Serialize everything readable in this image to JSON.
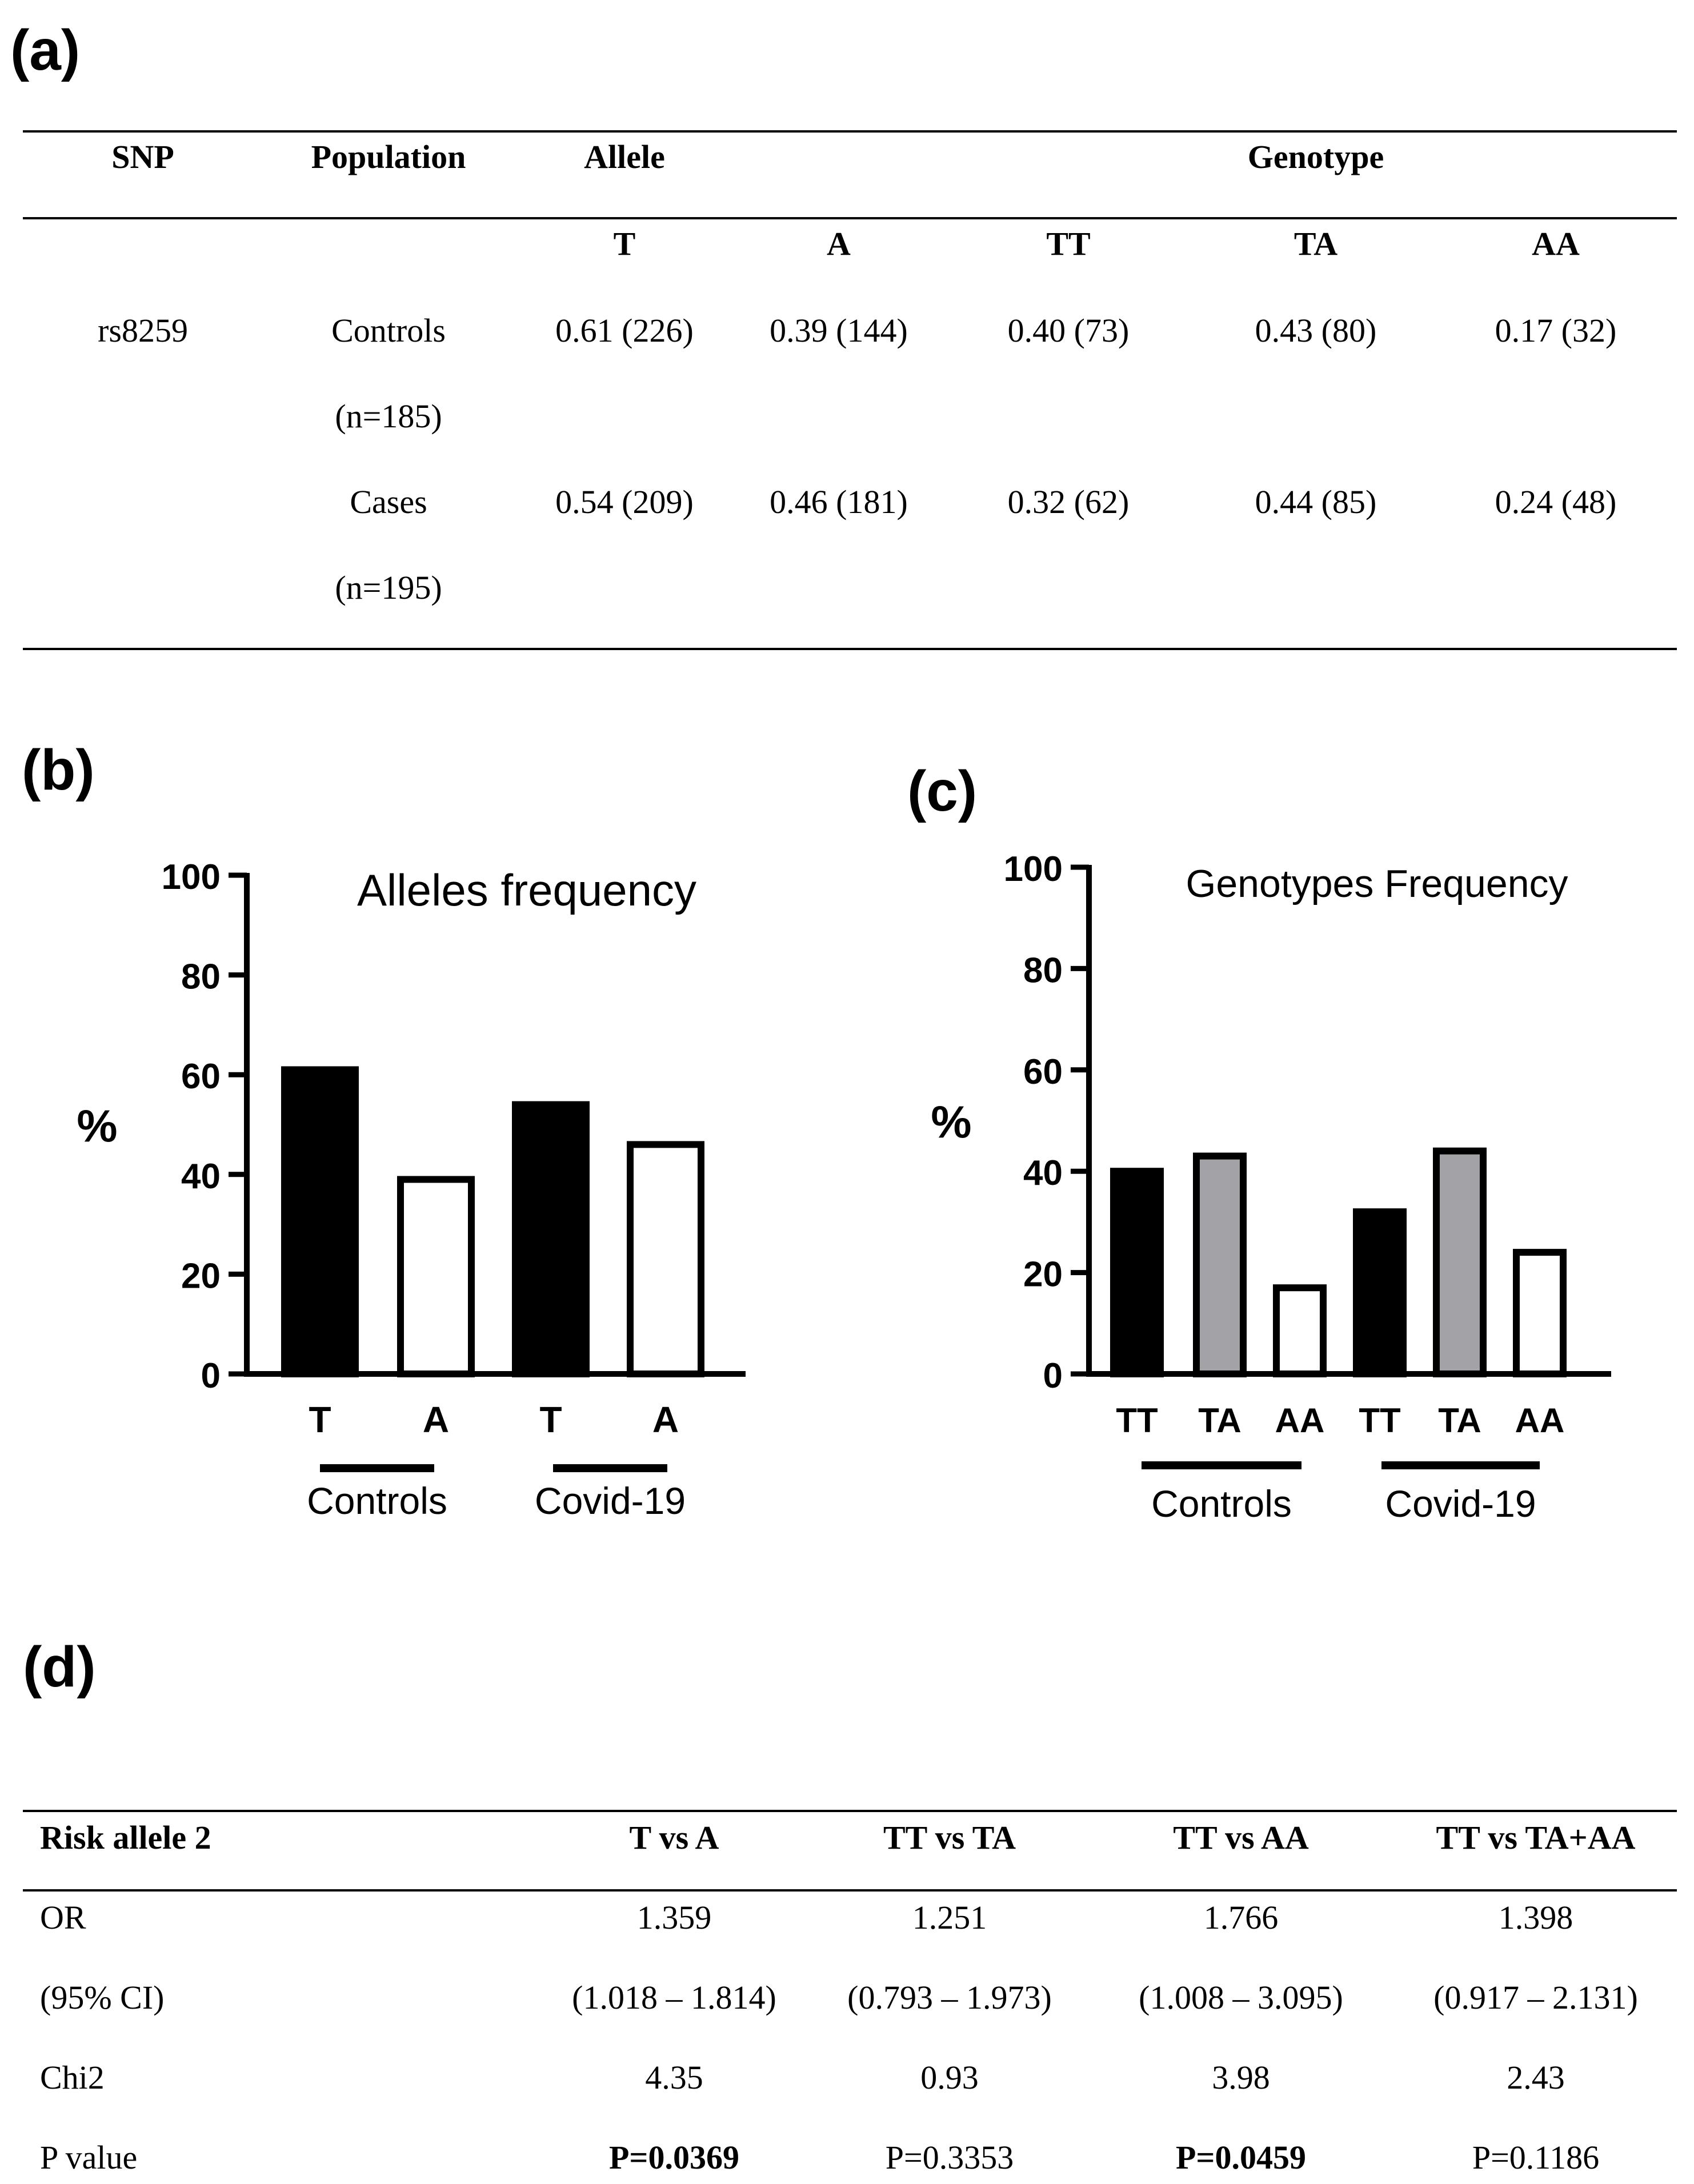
{
  "panels": {
    "a": "(a)",
    "b": "(b)",
    "c": "(c)",
    "d": "(d)"
  },
  "table_a": {
    "headers": {
      "snp": "SNP",
      "population": "Population",
      "allele": "Allele",
      "genotype": "Genotype"
    },
    "subheaders": [
      "T",
      "A",
      "TT",
      "TA",
      "AA"
    ],
    "rows": [
      {
        "snp": "rs8259",
        "population": "Controls",
        "n": "(n=185)",
        "values": [
          "0.61 (226)",
          "0.39 (144)",
          "0.40 (73)",
          "0.43 (80)",
          "0.17 (32)"
        ]
      },
      {
        "snp": "",
        "population": "Cases",
        "n": "(n=195)",
        "values": [
          "0.54 (209)",
          "0.46 (181)",
          "0.32 (62)",
          "0.44 (85)",
          "0.24 (48)"
        ]
      }
    ]
  },
  "chart_data": [
    {
      "type": "bar",
      "title": "Alleles frequency",
      "ylabel": "%",
      "xlabel": "",
      "ylim": [
        0,
        100
      ],
      "yticks": [
        0,
        20,
        40,
        60,
        80,
        100
      ],
      "categories": [
        "T",
        "A",
        "T",
        "A"
      ],
      "values": [
        61,
        39,
        54,
        46
      ],
      "fills": [
        "#000000",
        "#ffffff",
        "#000000",
        "#ffffff"
      ],
      "groups": [
        {
          "label": "Controls",
          "span": [
            0,
            1
          ]
        },
        {
          "label": "Covid-19",
          "span": [
            2,
            3
          ]
        }
      ]
    },
    {
      "type": "bar",
      "title": "Genotypes Frequency",
      "ylabel": "%",
      "xlabel": "",
      "ylim": [
        0,
        100
      ],
      "yticks": [
        0,
        20,
        40,
        60,
        80,
        100
      ],
      "categories": [
        "TT",
        "TA",
        "AA",
        "TT",
        "TA",
        "AA"
      ],
      "values": [
        40,
        43,
        17,
        32,
        44,
        24
      ],
      "fills": [
        "#000000",
        "#a3a3a7",
        "#ffffff",
        "#000000",
        "#a3a3a7",
        "#ffffff"
      ],
      "groups": [
        {
          "label": "Controls",
          "span": [
            0,
            2
          ]
        },
        {
          "label": "Covid-19",
          "span": [
            3,
            5
          ]
        }
      ]
    }
  ],
  "table_d": {
    "headers": [
      "Risk allele 2",
      "T vs A",
      "TT vs TA",
      "TT vs AA",
      "TT vs TA+AA"
    ],
    "rows": [
      {
        "label": "OR",
        "values": [
          "1.359",
          "1.251",
          "1.766",
          "1.398"
        ],
        "bold": [
          false,
          false,
          false,
          false
        ]
      },
      {
        "label": "(95% CI)",
        "values": [
          "(1.018 – 1.814)",
          "(0.793 – 1.973)",
          "(1.008 – 3.095)",
          "(0.917 – 2.131)"
        ],
        "bold": [
          false,
          false,
          false,
          false
        ]
      },
      {
        "label": "Chi2",
        "values": [
          "4.35",
          "0.93",
          "3.98",
          "2.43"
        ],
        "bold": [
          false,
          false,
          false,
          false
        ]
      },
      {
        "label": "P value",
        "values": [
          "P=0.0369",
          "P=0.3353",
          "P=0.0459",
          "P=0.1186"
        ],
        "bold": [
          true,
          false,
          true,
          false
        ]
      }
    ]
  }
}
